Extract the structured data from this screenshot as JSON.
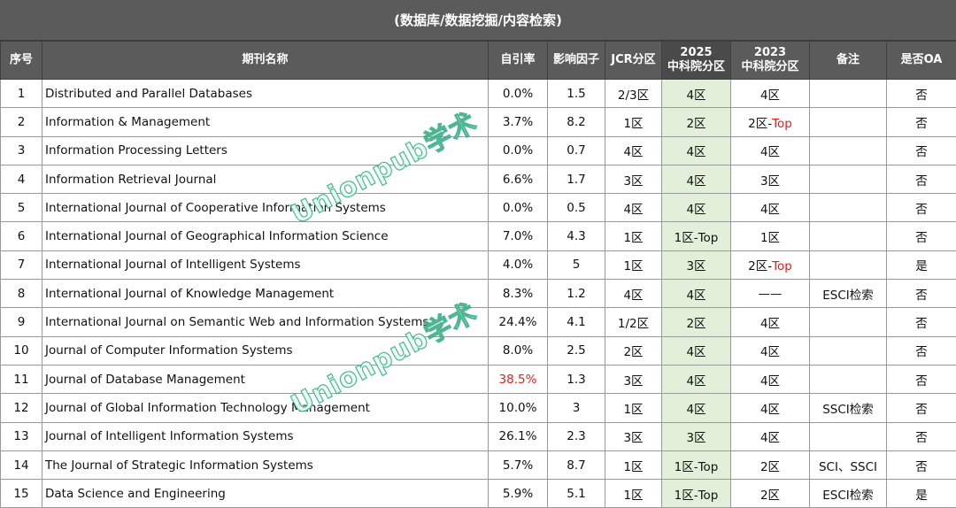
{
  "title": "(数据库/数据挖掘/内容检索)",
  "headers": {
    "idx": "序号",
    "name": "期刊名称",
    "self_cite": "自引率",
    "if": "影响因子",
    "jcr": "JCR分区",
    "cas2025_year": "2025",
    "cas2025_label": "中科院分区",
    "cas2023_year": "2023",
    "cas2023_label": "中科院分区",
    "note": "备注",
    "oa": "是否OA"
  },
  "rows": [
    {
      "idx": "1",
      "name": "Distributed and Parallel Databases",
      "self_cite": "0.0%",
      "if": "1.5",
      "jcr": "2/3区",
      "cas2025": "4区",
      "cas2023": "4区",
      "cas2023_top": "",
      "note": "",
      "oa": "否"
    },
    {
      "idx": "2",
      "name": "Information & Management",
      "self_cite": "3.7%",
      "if": "8.2",
      "jcr": "1区",
      "cas2025": "2区",
      "cas2023": "2区-",
      "cas2023_top": "Top",
      "note": "",
      "oa": "否"
    },
    {
      "idx": "3",
      "name": "Information Processing Letters",
      "self_cite": "0.0%",
      "if": "0.7",
      "jcr": "4区",
      "cas2025": "4区",
      "cas2023": "4区",
      "cas2023_top": "",
      "note": "",
      "oa": "否"
    },
    {
      "idx": "4",
      "name": "Information Retrieval Journal",
      "self_cite": "6.6%",
      "if": "1.7",
      "jcr": "3区",
      "cas2025": "4区",
      "cas2023": "3区",
      "cas2023_top": "",
      "note": "",
      "oa": "否"
    },
    {
      "idx": "5",
      "name": "International Journal of Cooperative Information Systems",
      "self_cite": "0.0%",
      "if": "0.5",
      "jcr": "4区",
      "cas2025": "4区",
      "cas2023": "4区",
      "cas2023_top": "",
      "note": "",
      "oa": "否"
    },
    {
      "idx": "6",
      "name": "International Journal of Geographical Information Science",
      "self_cite": "7.0%",
      "if": "4.3",
      "jcr": "1区",
      "cas2025": "1区-Top",
      "cas2023": "1区",
      "cas2023_top": "",
      "note": "",
      "oa": "否"
    },
    {
      "idx": "7",
      "name": "International Journal of Intelligent Systems",
      "self_cite": "4.0%",
      "if": "5",
      "jcr": "1区",
      "cas2025": "3区",
      "cas2023": "2区-",
      "cas2023_top": "Top",
      "note": "",
      "oa": "是"
    },
    {
      "idx": "8",
      "name": "International Journal of Knowledge Management",
      "self_cite": "8.3%",
      "if": "1.2",
      "jcr": "4区",
      "cas2025": "4区",
      "cas2023": "——",
      "cas2023_top": "",
      "note": "ESCI检索",
      "oa": "否"
    },
    {
      "idx": "9",
      "name": "International Journal on Semantic Web and Information Systems",
      "self_cite": "24.4%",
      "if": "4.1",
      "jcr": "1/2区",
      "cas2025": "2区",
      "cas2023": "4区",
      "cas2023_top": "",
      "note": "",
      "oa": "否"
    },
    {
      "idx": "10",
      "name": "Journal of Computer Information Systems",
      "self_cite": "8.0%",
      "if": "2.5",
      "jcr": "2区",
      "cas2025": "4区",
      "cas2023": "4区",
      "cas2023_top": "",
      "note": "",
      "oa": "否"
    },
    {
      "idx": "11",
      "name": "Journal of Database Management",
      "self_cite": "38.5%",
      "if": "1.3",
      "jcr": "3区",
      "cas2025": "4区",
      "cas2023": "4区",
      "cas2023_top": "",
      "note": "",
      "oa": "否",
      "self_cite_red": true
    },
    {
      "idx": "12",
      "name": "Journal of Global Information Technology Management",
      "self_cite": "10.0%",
      "if": "3",
      "jcr": "1区",
      "cas2025": "4区",
      "cas2023": "4区",
      "cas2023_top": "",
      "note": "SSCI检索",
      "oa": "否"
    },
    {
      "idx": "13",
      "name": "Journal of Intelligent Information Systems",
      "self_cite": "26.1%",
      "if": "2.3",
      "jcr": "3区",
      "cas2025": "3区",
      "cas2023": "4区",
      "cas2023_top": "",
      "note": "",
      "oa": "否"
    },
    {
      "idx": "14",
      "name": "The Journal of Strategic Information Systems",
      "self_cite": "5.7%",
      "if": "8.7",
      "jcr": "1区",
      "cas2025": "1区-Top",
      "cas2023": "2区",
      "cas2023_top": "",
      "note": "SCI、SSCI",
      "oa": "否"
    },
    {
      "idx": "15",
      "name": "Data Science and Engineering",
      "self_cite": "5.9%",
      "if": "5.1",
      "jcr": "1区",
      "cas2025": "1区-Top",
      "cas2023": "2区",
      "cas2023_top": "",
      "note": "ESCI检索",
      "oa": "是"
    }
  ],
  "watermark": "Unionpub学术",
  "colors": {
    "header_bg": "#5b5b5b",
    "cas2025_bg": "#e2efd9",
    "highlight_red": "#e02020",
    "watermark": "#3fb08a"
  }
}
